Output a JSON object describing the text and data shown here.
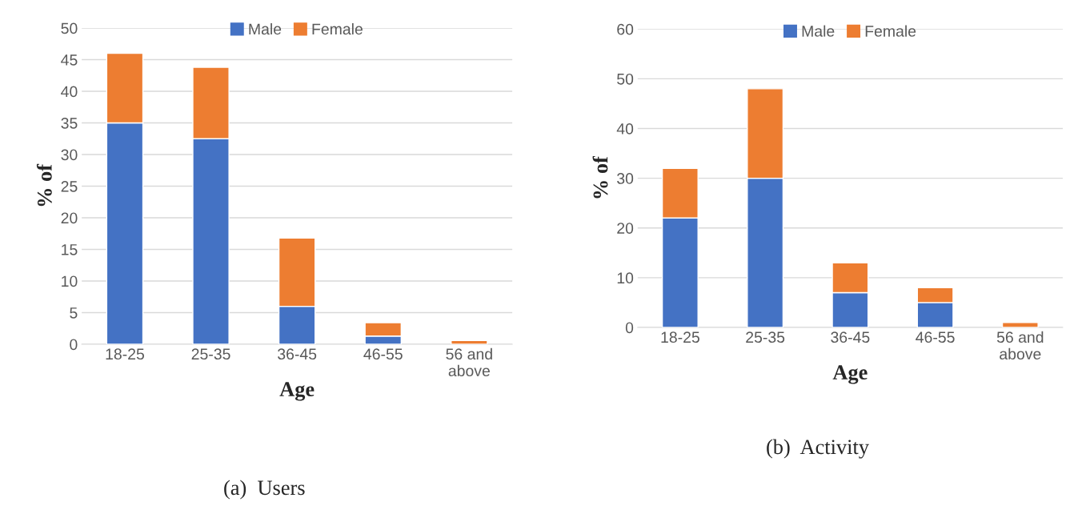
{
  "chart_data": [
    {
      "type": "bar",
      "stacked": true,
      "xlabel": "Age",
      "ylabel": "% of",
      "categories": [
        "18-25",
        "25-35",
        "36-45",
        "46-55",
        "56 and\nabove"
      ],
      "series": [
        {
          "name": "Male",
          "color": "#4472c4",
          "values": [
            35,
            32.5,
            6,
            1.3,
            0
          ]
        },
        {
          "name": "Female",
          "color": "#ed7d31",
          "values": [
            11,
            11.3,
            10.8,
            2.1,
            0.6
          ]
        }
      ],
      "ylim": [
        0,
        50
      ],
      "yticks": [
        0,
        5,
        10,
        15,
        20,
        25,
        30,
        35,
        40,
        45,
        50
      ],
      "grid": "y",
      "legend": "top",
      "annotations": [
        "(a)  Users"
      ]
    },
    {
      "type": "bar",
      "stacked": true,
      "xlabel": "Age",
      "ylabel": "% of",
      "categories": [
        "18-25",
        "25-35",
        "36-45",
        "46-55",
        "56 and\nabove"
      ],
      "series": [
        {
          "name": "Male",
          "color": "#4472c4",
          "values": [
            22,
            30,
            7,
            5,
            0
          ]
        },
        {
          "name": "Female",
          "color": "#ed7d31",
          "values": [
            10,
            18,
            6,
            3,
            1
          ]
        }
      ],
      "ylim": [
        0,
        60
      ],
      "yticks": [
        0,
        10,
        20,
        30,
        40,
        50,
        60
      ],
      "grid": "y",
      "legend": "top",
      "annotations": [
        "(b)  Activity"
      ]
    }
  ]
}
